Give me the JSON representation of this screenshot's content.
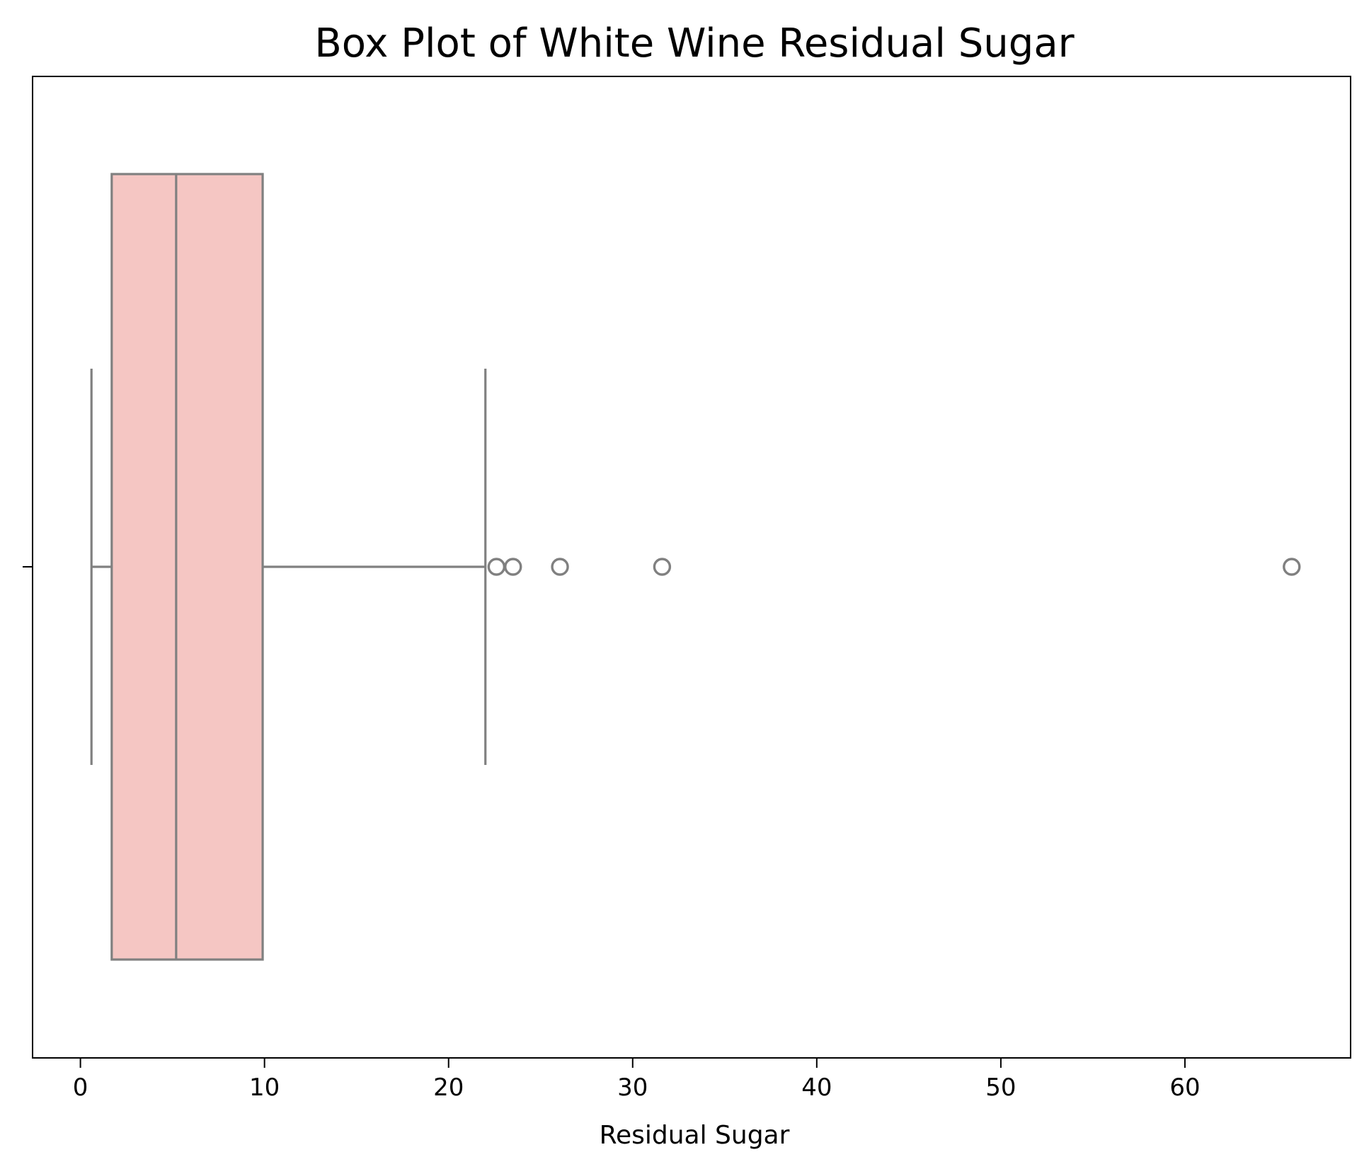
{
  "chart_data": {
    "type": "box",
    "title": "Box Plot of White Wine Residual Sugar",
    "xlabel": "Residual Sugar",
    "ylabel": "",
    "orientation": "horizontal",
    "xlim": [
      -2.6,
      69.0
    ],
    "xticks": [
      0,
      10,
      20,
      30,
      40,
      50,
      60
    ],
    "xtick_labels": [
      "0",
      "10",
      "20",
      "30",
      "40",
      "50",
      "60"
    ],
    "grid": false,
    "legend": "none",
    "box": {
      "whisker_low": 0.6,
      "q1": 1.7,
      "median": 5.2,
      "q3": 9.9,
      "whisker_high": 22.0,
      "outliers": [
        22.6,
        23.5,
        26.05,
        31.6,
        65.8
      ]
    },
    "colors": {
      "box_fill": "#f5c6c3",
      "line": "#808080",
      "axes": "#000000",
      "background": "#ffffff"
    }
  }
}
